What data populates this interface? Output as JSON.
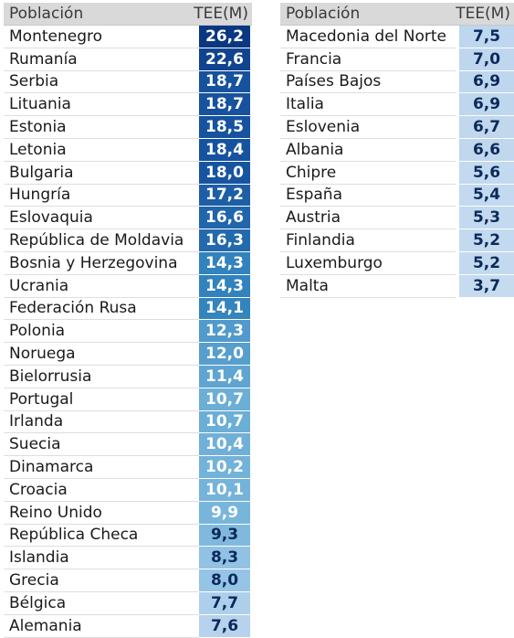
{
  "chart_data": [
    {
      "type": "table",
      "columns": [
        "Población",
        "TEE(M)"
      ],
      "rows": [
        {
          "name": "Montenegro",
          "value": "26,2"
        },
        {
          "name": "Rumanía",
          "value": "22,6"
        },
        {
          "name": "Serbia",
          "value": "18,7"
        },
        {
          "name": "Lituania",
          "value": "18,7"
        },
        {
          "name": "Estonia",
          "value": "18,5"
        },
        {
          "name": "Letonia",
          "value": "18,4"
        },
        {
          "name": "Bulgaria",
          "value": "18,0"
        },
        {
          "name": "Hungría",
          "value": "17,2"
        },
        {
          "name": "Eslovaquia",
          "value": "16,6"
        },
        {
          "name": "República de Moldavia",
          "value": "16,3"
        },
        {
          "name": "Bosnia y Herzegovina",
          "value": "14,3"
        },
        {
          "name": "Ucrania",
          "value": "14,3"
        },
        {
          "name": "Federación Rusa",
          "value": "14,1"
        },
        {
          "name": "Polonia",
          "value": "12,3"
        },
        {
          "name": "Noruega",
          "value": "12,0"
        },
        {
          "name": "Bielorrusia",
          "value": "11,4"
        },
        {
          "name": "Portugal",
          "value": "10,7"
        },
        {
          "name": "Irlanda",
          "value": "10,7"
        },
        {
          "name": "Suecia",
          "value": "10,4"
        },
        {
          "name": "Dinamarca",
          "value": "10,2"
        },
        {
          "name": "Croacia",
          "value": "10,1"
        },
        {
          "name": "Reino Unido",
          "value": "9,9"
        },
        {
          "name": "República Checa",
          "value": "9,3"
        },
        {
          "name": "Islandia",
          "value": "8,3"
        },
        {
          "name": "Grecia",
          "value": "8,0"
        },
        {
          "name": "Bélgica",
          "value": "7,7"
        },
        {
          "name": "Alemania",
          "value": "7,6"
        }
      ]
    },
    {
      "type": "table",
      "columns": [
        "Población",
        "TEE(M)"
      ],
      "rows": [
        {
          "name": "Macedonia del Norte",
          "value": "7,5"
        },
        {
          "name": "Francia",
          "value": "7,0"
        },
        {
          "name": "Países Bajos",
          "value": "6,9"
        },
        {
          "name": "Italia",
          "value": "6,9"
        },
        {
          "name": "Eslovenia",
          "value": "6,7"
        },
        {
          "name": "Albania",
          "value": "6,6"
        },
        {
          "name": "Chipre",
          "value": "5,6"
        },
        {
          "name": "España",
          "value": "5,4"
        },
        {
          "name": "Austria",
          "value": "5,3"
        },
        {
          "name": "Finlandia",
          "value": "5,2"
        },
        {
          "name": "Luxemburgo",
          "value": "5,2"
        },
        {
          "name": "Malta",
          "value": "3,7"
        }
      ]
    }
  ]
}
